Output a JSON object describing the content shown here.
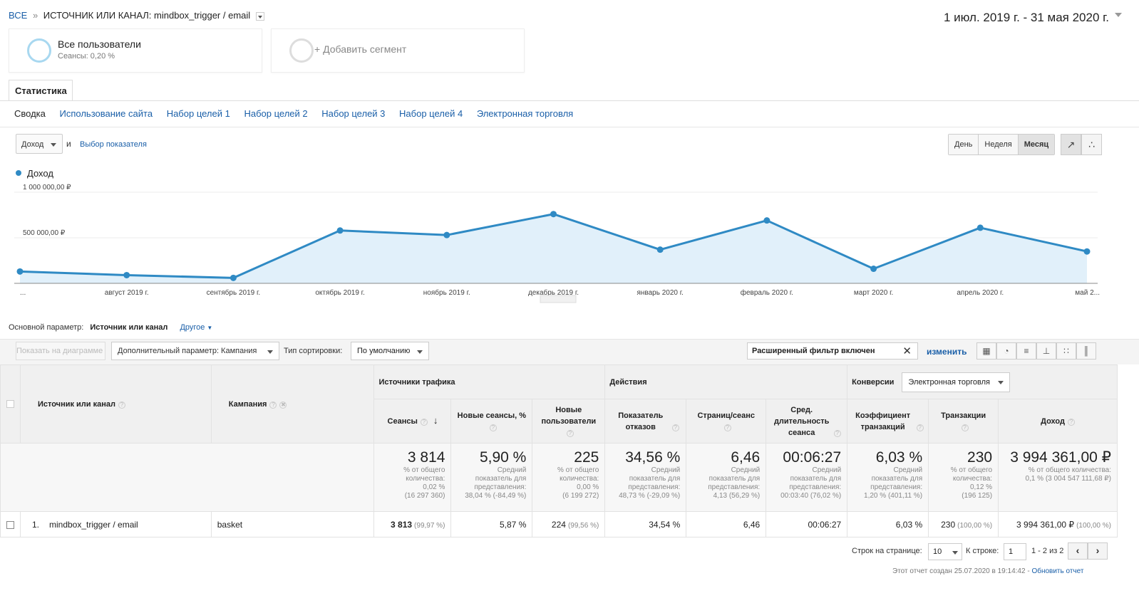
{
  "breadcrumb": {
    "all": "ВСЕ",
    "sep": "»",
    "current": "ИСТОЧНИК ИЛИ КАНАЛ: mindbox_trigger / email"
  },
  "date_range": "1 июл. 2019 г. - 31 мая 2020 г.",
  "segments": [
    {
      "title": "Все пользователи",
      "sub": "Сеансы: 0,20 %"
    },
    {
      "title": "+ Добавить сегмент"
    }
  ],
  "tab": "Статистика",
  "subnav": [
    "Сводка",
    "Использование сайта",
    "Набор целей 1",
    "Набор целей 2",
    "Набор целей 3",
    "Набор целей 4",
    "Электронная торговля"
  ],
  "metric": {
    "selected": "Доход",
    "and": "и",
    "choose": "Выбор показателя"
  },
  "periods": [
    "День",
    "Неделя",
    "Месяц"
  ],
  "chart_icons": [
    "line-chart-icon",
    "motion-chart-icon"
  ],
  "chart_data": {
    "type": "area",
    "series": [
      {
        "name": "Доход",
        "values": [
          130000,
          90000,
          60000,
          580000,
          530000,
          760000,
          370000,
          690000,
          160000,
          610000,
          350000
        ]
      }
    ],
    "x": [
      "",
      "август 2019 г.",
      "сентябрь 2019 г.",
      "октябрь 2019 г.",
      "ноябрь 2019 г.",
      "декабрь 2019 г.",
      "январь 2020 г.",
      "февраль 2020 г.",
      "март 2020 г.",
      "апрель 2020 г.",
      "май 2..."
    ],
    "first_tick": "...",
    "yticks": [
      {
        "value": 1000000,
        "label": "1 000 000,00 ₽"
      },
      {
        "value": 500000,
        "label": "500 000,00 ₽"
      }
    ],
    "ylim": [
      0,
      1000000
    ],
    "color": "#2f8ac4",
    "fill": "#e1f0fa"
  },
  "dimension": {
    "label": "Основной параметр:",
    "value": "Источник или канал",
    "other": "Другое"
  },
  "toolbar": {
    "plot": "Показать на диаграмме",
    "secondary": "Дополнительный параметр: Кампания",
    "sort_label": "Тип сортировки:",
    "sort_value": "По умолчанию",
    "filter": "Расширенный фильтр включен",
    "edit": "изменить"
  },
  "table": {
    "groups": {
      "traffic": "Источники трафика",
      "actions": "Действия",
      "conv": "Конверсии",
      "conv_select": "Электронная торговля"
    },
    "dim_headers": [
      "Источник или канал",
      "Кампания"
    ],
    "columns": [
      "Сеансы",
      "Новые сеансы, %",
      "Новые пользователи",
      "Показатель отказов",
      "Страниц/сеанс",
      "Сред. длительность сеанса",
      "Коэффициент транзакций",
      "Транзакции",
      "Доход"
    ],
    "totals": [
      {
        "big": "3 814",
        "sub": [
          "% от общего",
          "количества:",
          "0,02 %",
          "(16 297 360)"
        ]
      },
      {
        "big": "5,90 %",
        "sub": [
          "Средний",
          "показатель для",
          "представления:",
          "38,04 % (-84,49 %)"
        ]
      },
      {
        "big": "225",
        "sub": [
          "% от общего",
          "количества:",
          "0,00 %",
          "(6 199 272)"
        ]
      },
      {
        "big": "34,56 %",
        "sub": [
          "Средний",
          "показатель для",
          "представления:",
          "48,73 % (-29,09 %)"
        ]
      },
      {
        "big": "6,46",
        "sub": [
          "Средний",
          "показатель для",
          "представления:",
          "4,13 (56,29 %)"
        ]
      },
      {
        "big": "00:06:27",
        "sub": [
          "Средний",
          "показатель для",
          "представления:",
          "00:03:40 (76,02 %)"
        ]
      },
      {
        "big": "6,03 %",
        "sub": [
          "Средний",
          "показатель для",
          "представления:",
          "1,20 % (401,11 %)"
        ]
      },
      {
        "big": "230",
        "sub": [
          "% от общего",
          "количества:",
          "0,12 %",
          "(196 125)"
        ]
      },
      {
        "big": "3 994 361,00 ₽",
        "sub": [
          "% от общего количества:",
          "0,1 % (3 004 547 111,68 ₽)"
        ]
      }
    ],
    "rows": [
      {
        "index": "1.",
        "source": "mindbox_trigger / email",
        "campaign": "basket",
        "cells": [
          {
            "v": "3 813",
            "p": "(99,97 %)"
          },
          {
            "v": "5,87 %",
            "p": ""
          },
          {
            "v": "224",
            "p": "(99,56 %)"
          },
          {
            "v": "34,54 %",
            "p": ""
          },
          {
            "v": "6,46",
            "p": ""
          },
          {
            "v": "00:06:27",
            "p": ""
          },
          {
            "v": "6,03 %",
            "p": ""
          },
          {
            "v": "230",
            "p": "(100,00 %)"
          },
          {
            "v": "3 994 361,00 ₽",
            "p": "(100,00 %)"
          }
        ]
      }
    ]
  },
  "pagination": {
    "rows_label": "Строк на странице:",
    "rows_value": "10",
    "goto_label": "К строке:",
    "goto_value": "1",
    "range": "1 - 2 из 2"
  },
  "footer": {
    "created": "Этот отчет создан 25.07.2020 в 19:14:42 -",
    "refresh": "Обновить отчет"
  }
}
